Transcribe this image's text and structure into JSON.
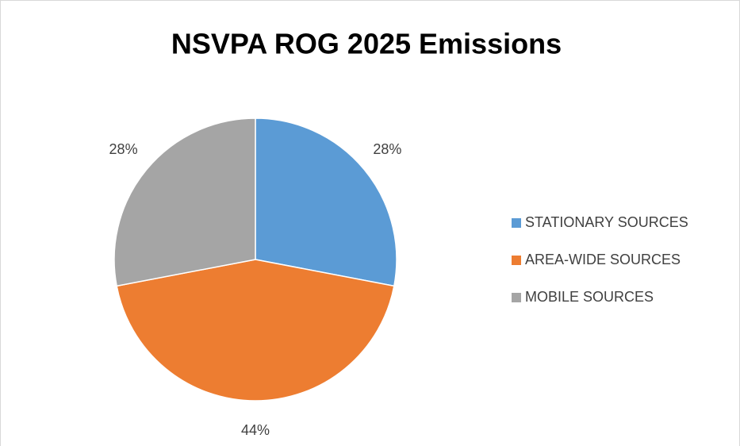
{
  "chart_data": {
    "type": "pie",
    "title": "NSVPA ROG 2025 Emissions",
    "categories": [
      "STATIONARY SOURCES",
      "AREA-WIDE SOURCES",
      "MOBILE SOURCES"
    ],
    "values": [
      28,
      44,
      28
    ],
    "value_labels": [
      "28%",
      "44%",
      "28%"
    ],
    "colors": [
      "#5b9bd5",
      "#ed7d31",
      "#a5a5a5"
    ],
    "legend": "right"
  }
}
